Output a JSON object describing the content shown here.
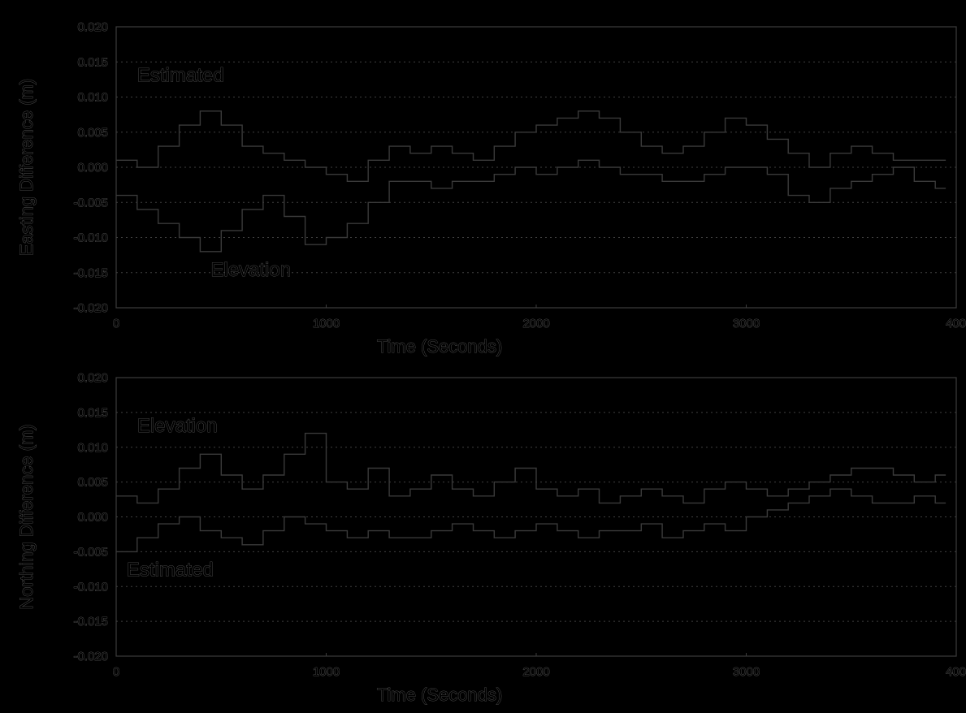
{
  "chart_data": [
    {
      "type": "line",
      "ylabel": "Easting Difference (m)",
      "xlabel": "Time (Seconds)",
      "xlim": [
        0,
        4000
      ],
      "ylim": [
        -0.02,
        0.02
      ],
      "x_ticks": [
        "0",
        "1000",
        "2000",
        "3000",
        "400"
      ],
      "y_ticks": [
        "0.020",
        "0.015",
        "0.010",
        "0.005",
        "0.000",
        "-0.005",
        "-0.010",
        "-0.015",
        "-0.020"
      ],
      "grid": "horizontal-dotted",
      "annotations": [
        {
          "text": "Estimated",
          "x": 100,
          "y": 0.0122
        },
        {
          "text": "Elevation",
          "x": 450,
          "y": -0.0155
        }
      ],
      "series": [
        {
          "x": [
            0,
            100,
            200,
            300,
            400,
            500,
            600,
            700,
            800,
            900,
            1000,
            1100,
            1200,
            1300,
            1400,
            1500,
            1600,
            1700,
            1800,
            1900,
            2000,
            2100,
            2200,
            2300,
            2400,
            2500,
            2600,
            2700,
            2800,
            2900,
            3000,
            3100,
            3200,
            3300,
            3400,
            3500,
            3600,
            3700,
            3800,
            3900
          ],
          "y": [
            0.001,
            0.0,
            0.003,
            0.006,
            0.008,
            0.006,
            0.003,
            0.002,
            0.001,
            0.0,
            -0.001,
            -0.002,
            0.001,
            0.003,
            0.002,
            0.003,
            0.002,
            0.001,
            0.003,
            0.005,
            0.006,
            0.007,
            0.008,
            0.007,
            0.005,
            0.003,
            0.002,
            0.003,
            0.005,
            0.007,
            0.006,
            0.004,
            0.002,
            0.0,
            0.002,
            0.003,
            0.002,
            0.001,
            0.001,
            0.001
          ]
        },
        {
          "x": [
            0,
            100,
            200,
            300,
            400,
            500,
            600,
            700,
            800,
            900,
            1000,
            1100,
            1200,
            1300,
            1400,
            1500,
            1600,
            1700,
            1800,
            1900,
            2000,
            2100,
            2200,
            2300,
            2400,
            2500,
            2600,
            2700,
            2800,
            2900,
            3000,
            3100,
            3200,
            3300,
            3400,
            3500,
            3600,
            3700,
            3800,
            3900
          ],
          "y": [
            -0.004,
            -0.006,
            -0.008,
            -0.01,
            -0.012,
            -0.009,
            -0.006,
            -0.004,
            -0.007,
            -0.011,
            -0.01,
            -0.008,
            -0.005,
            -0.002,
            -0.002,
            -0.003,
            -0.002,
            -0.002,
            -0.001,
            0.0,
            -0.001,
            0.0,
            0.001,
            0.0,
            -0.001,
            -0.001,
            -0.002,
            -0.002,
            -0.001,
            0.0,
            0.0,
            -0.001,
            -0.004,
            -0.005,
            -0.003,
            -0.002,
            -0.001,
            0.0,
            -0.002,
            -0.003
          ]
        }
      ]
    },
    {
      "type": "line",
      "ylabel": "Northing Difference (m)",
      "xlabel": "Time (Seconds)",
      "xlim": [
        0,
        4000
      ],
      "ylim": [
        -0.02,
        0.02
      ],
      "x_ticks": [
        "0",
        "1000",
        "2000",
        "3000",
        "400"
      ],
      "y_ticks": [
        "0.020",
        "0.015",
        "0.010",
        "0.005",
        "0.000",
        "-0.005",
        "-0.010",
        "-0.015",
        "-0.020"
      ],
      "grid": "horizontal-dotted",
      "annotations": [
        {
          "text": "Elevation",
          "x": 100,
          "y": 0.0122
        },
        {
          "text": "Estimated",
          "x": 50,
          "y": -0.0085
        }
      ],
      "series": [
        {
          "x": [
            0,
            100,
            200,
            300,
            400,
            500,
            600,
            700,
            800,
            900,
            1000,
            1100,
            1200,
            1300,
            1400,
            1500,
            1600,
            1700,
            1800,
            1900,
            2000,
            2100,
            2200,
            2300,
            2400,
            2500,
            2600,
            2700,
            2800,
            2900,
            3000,
            3100,
            3200,
            3300,
            3400,
            3500,
            3600,
            3700,
            3800,
            3900
          ],
          "y": [
            0.003,
            0.002,
            0.004,
            0.007,
            0.009,
            0.006,
            0.004,
            0.006,
            0.009,
            0.012,
            0.005,
            0.004,
            0.007,
            0.003,
            0.004,
            0.006,
            0.004,
            0.003,
            0.005,
            0.007,
            0.004,
            0.003,
            0.004,
            0.002,
            0.003,
            0.004,
            0.003,
            0.002,
            0.004,
            0.005,
            0.004,
            0.003,
            0.004,
            0.005,
            0.006,
            0.007,
            0.007,
            0.006,
            0.005,
            0.006
          ]
        },
        {
          "x": [
            0,
            100,
            200,
            300,
            400,
            500,
            600,
            700,
            800,
            900,
            1000,
            1100,
            1200,
            1300,
            1400,
            1500,
            1600,
            1700,
            1800,
            1900,
            2000,
            2100,
            2200,
            2300,
            2400,
            2500,
            2600,
            2700,
            2800,
            2900,
            3000,
            3100,
            3200,
            3300,
            3400,
            3500,
            3600,
            3700,
            3800,
            3900
          ],
          "y": [
            -0.005,
            -0.003,
            -0.001,
            0.0,
            -0.002,
            -0.003,
            -0.004,
            -0.002,
            0.0,
            -0.001,
            -0.002,
            -0.003,
            -0.002,
            -0.003,
            -0.003,
            -0.002,
            -0.001,
            -0.002,
            -0.003,
            -0.002,
            -0.001,
            -0.002,
            -0.003,
            -0.002,
            -0.002,
            -0.001,
            -0.003,
            -0.002,
            -0.001,
            -0.002,
            0.0,
            0.001,
            0.002,
            0.003,
            0.004,
            0.003,
            0.002,
            0.002,
            0.003,
            0.002
          ]
        }
      ]
    }
  ]
}
